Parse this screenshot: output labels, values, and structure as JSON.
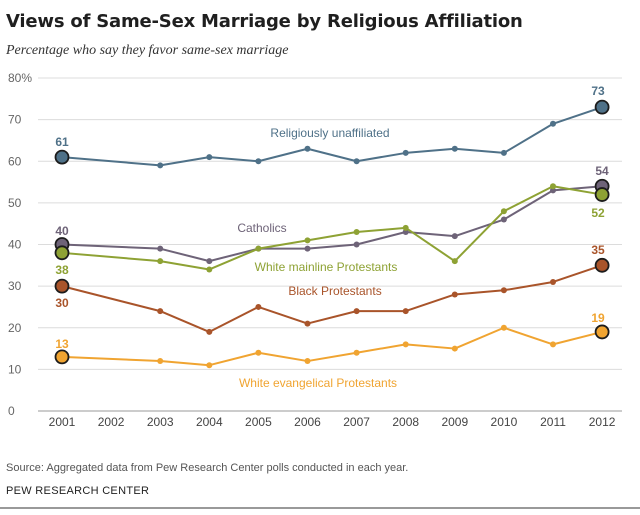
{
  "title": "Views of Same-Sex Marriage by Religious Affiliation",
  "subtitle": "Percentage who say they favor same-sex marriage",
  "source": "Source: Aggregated data from Pew Research Center polls conducted in each year.",
  "organization": "PEW RESEARCH CENTER",
  "chart_data": {
    "type": "line",
    "title": "Views of Same-Sex Marriage by Religious Affiliation",
    "xlabel": "",
    "ylabel": "Percentage who say they favor same-sex marriage",
    "ylim": [
      0,
      80
    ],
    "grid": true,
    "y_ticks": [
      "0",
      "10",
      "20",
      "30",
      "40",
      "50",
      "60",
      "70",
      "80%"
    ],
    "x": [
      "2001",
      "2002",
      "2003",
      "2004",
      "2005",
      "2006",
      "2007",
      "2008",
      "2009",
      "2010",
      "2011",
      "2012"
    ],
    "series": [
      {
        "name": "Religiously unaffiliated",
        "color": "#4f7188",
        "start_label": "61",
        "end_label": "73",
        "values": [
          61,
          null,
          59,
          61,
          60,
          63,
          60,
          62,
          63,
          62,
          69,
          73
        ]
      },
      {
        "name": "Catholics",
        "color": "#6e6378",
        "start_label": "40",
        "end_label": "54",
        "values": [
          40,
          null,
          39,
          36,
          39,
          39,
          40,
          43,
          42,
          46,
          53,
          54
        ]
      },
      {
        "name": "White mainline Protestants",
        "color": "#8ea234",
        "start_label": "38",
        "end_label": "52",
        "values": [
          38,
          null,
          36,
          34,
          39,
          41,
          43,
          44,
          36,
          48,
          54,
          52
        ]
      },
      {
        "name": "Black Protestants",
        "color": "#a9542a",
        "start_label": "30",
        "end_label": "35",
        "values": [
          30,
          null,
          24,
          19,
          25,
          21,
          24,
          24,
          28,
          29,
          31,
          35
        ]
      },
      {
        "name": "White evangelical Protestants",
        "color": "#f0a431",
        "start_label": "13",
        "end_label": "19",
        "values": [
          13,
          null,
          12,
          11,
          14,
          12,
          14,
          16,
          15,
          20,
          16,
          19
        ]
      }
    ]
  }
}
